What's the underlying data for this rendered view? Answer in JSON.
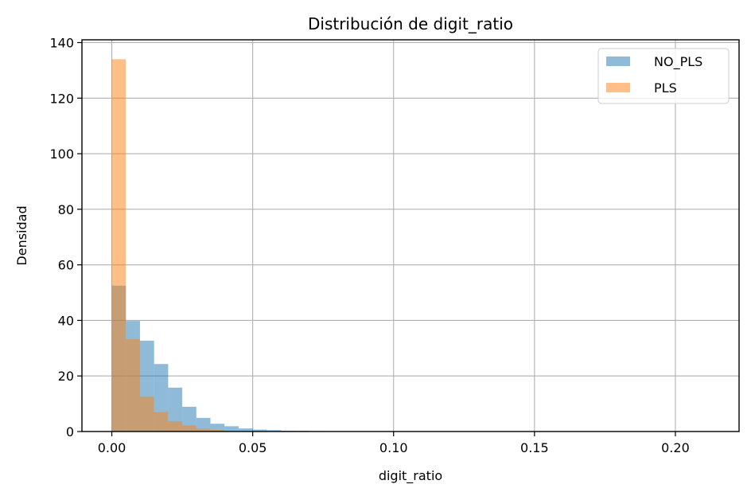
{
  "chart_data": {
    "type": "bar",
    "title": "Distribución de digit_ratio",
    "xlabel": "digit_ratio",
    "ylabel": "Densidad",
    "xlim": [
      -0.0106,
      0.2226
    ],
    "ylim": [
      0,
      141
    ],
    "xticks": [
      0.0,
      0.05,
      0.1,
      0.15,
      0.2
    ],
    "xtick_labels": [
      "0.00",
      "0.05",
      "0.10",
      "0.15",
      "0.20"
    ],
    "yticks": [
      0,
      20,
      40,
      60,
      80,
      100,
      120,
      140
    ],
    "ytick_labels": [
      "0",
      "20",
      "40",
      "60",
      "80",
      "100",
      "120",
      "140"
    ],
    "grid": true,
    "legend_position": "top-right",
    "series": [
      {
        "name": "NO_PLS",
        "color": "#1f77b4",
        "opacity": 0.5,
        "bin_start": 0.0,
        "bin_width": 0.005,
        "values": [
          52.5,
          39.8,
          32.7,
          24.3,
          15.8,
          8.9,
          4.9,
          2.8,
          1.9,
          1.1,
          0.7,
          0.5,
          0.3,
          0.25,
          0.15,
          0.08,
          0.06,
          0.04,
          0.03,
          0.02,
          0.02,
          0.015,
          0.01,
          0.01,
          0.01,
          0.005,
          0.005,
          0.005,
          0.005,
          0.005,
          0.005,
          0.005,
          0.005,
          0.005,
          0.005,
          0.005,
          0.005,
          0.005,
          0.005,
          0.005,
          0.005,
          0.005
        ]
      },
      {
        "name": "PLS",
        "color": "#ff7f0e",
        "opacity": 0.5,
        "bin_start": 0.0,
        "bin_width": 0.005,
        "values": [
          134,
          33.2,
          12.5,
          7.0,
          3.7,
          2.2,
          1.0,
          0.6,
          0.3,
          0.2,
          0.1,
          0.1,
          0.05,
          0.03
        ]
      }
    ]
  }
}
